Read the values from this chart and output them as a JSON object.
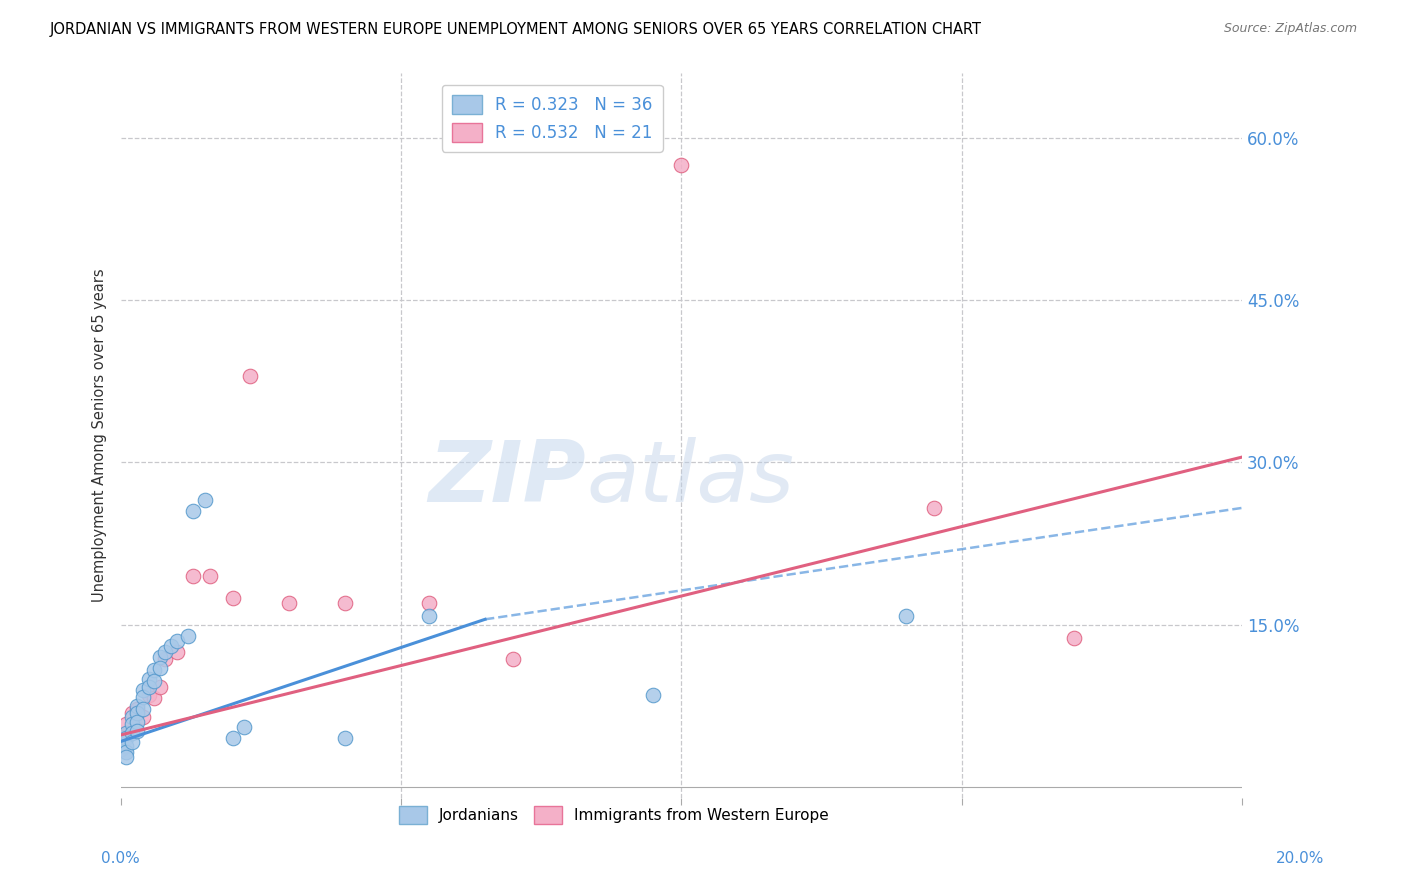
{
  "title": "JORDANIAN VS IMMIGRANTS FROM WESTERN EUROPE UNEMPLOYMENT AMONG SENIORS OVER 65 YEARS CORRELATION CHART",
  "source": "Source: ZipAtlas.com",
  "ylabel": "Unemployment Among Seniors over 65 years",
  "ytick_labels": [
    "60.0%",
    "45.0%",
    "30.0%",
    "15.0%"
  ],
  "ytick_positions": [
    0.6,
    0.45,
    0.3,
    0.15
  ],
  "xlim": [
    0.0,
    0.2
  ],
  "ylim": [
    -0.01,
    0.66
  ],
  "color_jordanian": "#a8c8e8",
  "color_western_europe": "#f4b0c8",
  "color_line_jordanian": "#4a90d9",
  "color_line_western_europe": "#e06080",
  "watermark_zip": "ZIP",
  "watermark_atlas": "atlas",
  "jordanian_x": [
    0.0,
    0.0,
    0.001,
    0.001,
    0.001,
    0.001,
    0.001,
    0.002,
    0.002,
    0.002,
    0.002,
    0.003,
    0.003,
    0.003,
    0.003,
    0.004,
    0.004,
    0.004,
    0.005,
    0.005,
    0.006,
    0.006,
    0.007,
    0.007,
    0.008,
    0.009,
    0.01,
    0.012,
    0.013,
    0.015,
    0.02,
    0.022,
    0.04,
    0.055,
    0.095,
    0.14
  ],
  "jordanian_y": [
    0.04,
    0.035,
    0.05,
    0.045,
    0.038,
    0.032,
    0.028,
    0.065,
    0.058,
    0.05,
    0.042,
    0.075,
    0.068,
    0.06,
    0.052,
    0.09,
    0.083,
    0.072,
    0.1,
    0.092,
    0.108,
    0.098,
    0.12,
    0.11,
    0.125,
    0.13,
    0.135,
    0.14,
    0.255,
    0.265,
    0.045,
    0.055,
    0.045,
    0.158,
    0.085,
    0.158
  ],
  "western_europe_x": [
    0.0,
    0.001,
    0.002,
    0.003,
    0.004,
    0.005,
    0.006,
    0.007,
    0.008,
    0.01,
    0.013,
    0.016,
    0.02,
    0.023,
    0.03,
    0.04,
    0.055,
    0.07,
    0.1,
    0.145,
    0.17
  ],
  "western_europe_y": [
    0.048,
    0.058,
    0.068,
    0.072,
    0.065,
    0.085,
    0.082,
    0.092,
    0.118,
    0.125,
    0.195,
    0.195,
    0.175,
    0.38,
    0.17,
    0.17,
    0.17,
    0.118,
    0.575,
    0.258,
    0.138
  ],
  "line_j_x0": 0.0,
  "line_j_y0": 0.042,
  "line_j_x1": 0.065,
  "line_j_y1": 0.155,
  "line_j_dash_x1": 0.2,
  "line_j_dash_y1": 0.258,
  "line_w_x0": 0.0,
  "line_w_y0": 0.048,
  "line_w_x1": 0.2,
  "line_w_y1": 0.305
}
